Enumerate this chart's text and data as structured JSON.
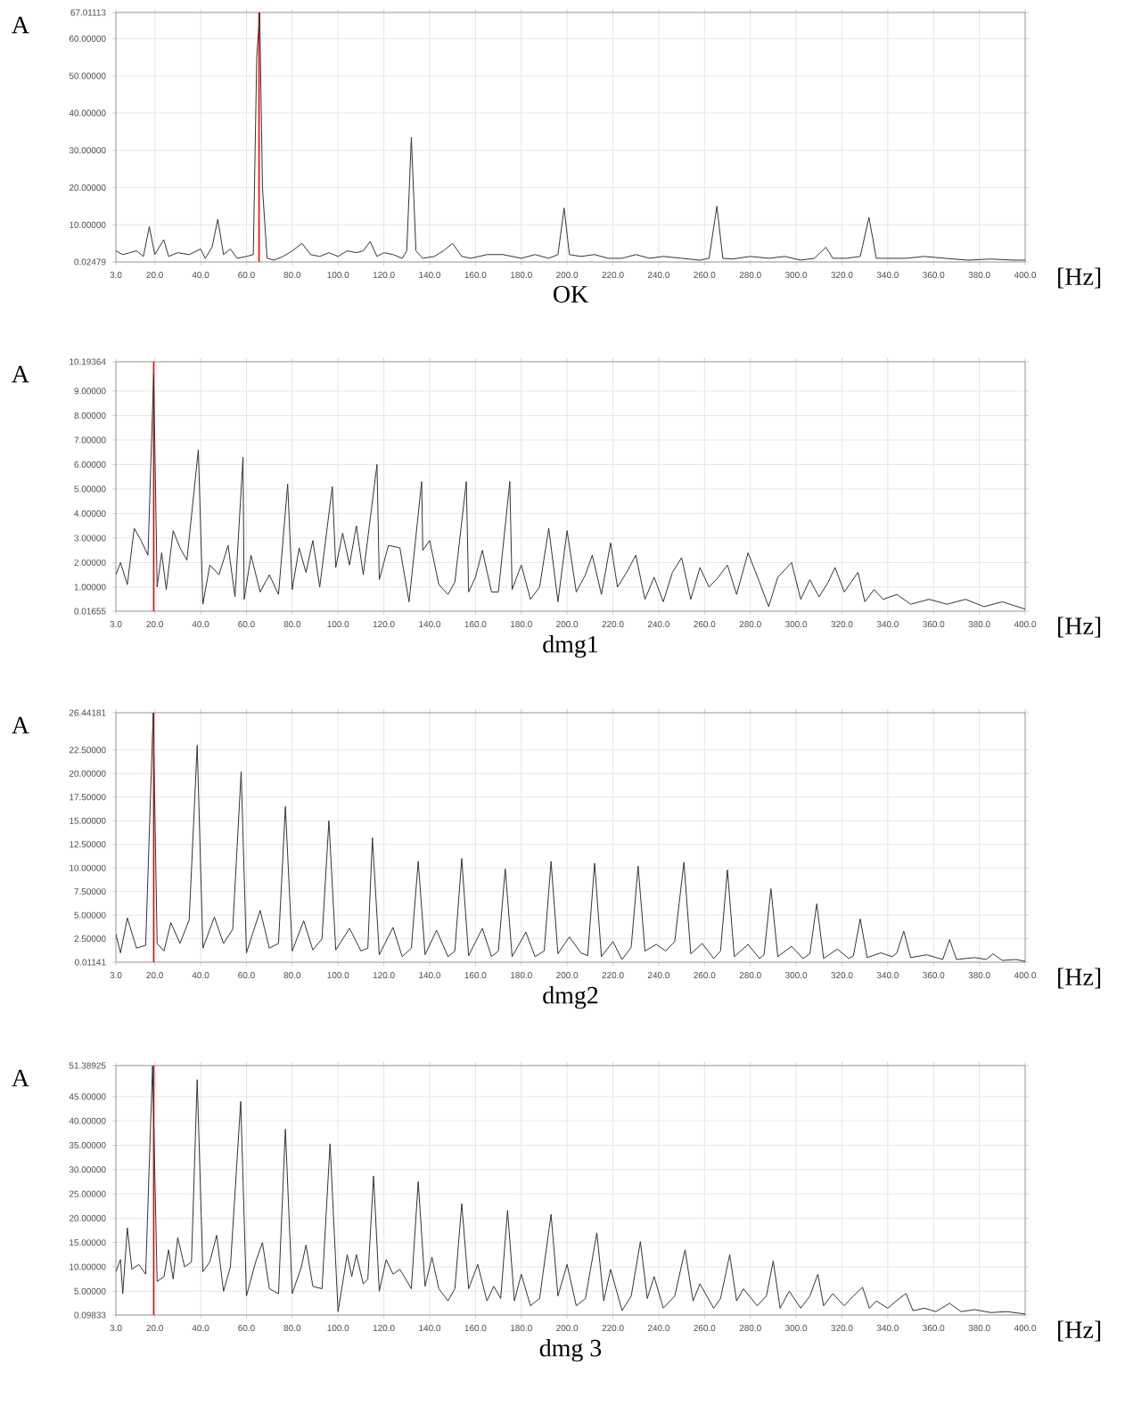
{
  "chart_data": [
    {
      "type": "line",
      "title": "OK",
      "xlabel": "[Hz]",
      "ylabel": "A",
      "color": "#333333",
      "grid": true,
      "xlim": [
        3,
        400
      ],
      "ylim": [
        0.02479,
        67.01113
      ],
      "xticks": [
        {
          "value": 3,
          "label": "3.0"
        },
        {
          "value": 20,
          "label": "20.0"
        },
        {
          "value": 40,
          "label": "40.0"
        },
        {
          "value": 60,
          "label": "60.0"
        },
        {
          "value": 80,
          "label": "80.0"
        },
        {
          "value": 100,
          "label": "100.0"
        },
        {
          "value": 120,
          "label": "120.0"
        },
        {
          "value": 140,
          "label": "140.0"
        },
        {
          "value": 160,
          "label": "160.0"
        },
        {
          "value": 180,
          "label": "180.0"
        },
        {
          "value": 200,
          "label": "200.0"
        },
        {
          "value": 220,
          "label": "220.0"
        },
        {
          "value": 240,
          "label": "240.0"
        },
        {
          "value": 260,
          "label": "260.0"
        },
        {
          "value": 280,
          "label": "280.0"
        },
        {
          "value": 300,
          "label": "300.0"
        },
        {
          "value": 320,
          "label": "320.0"
        },
        {
          "value": 340,
          "label": "340.0"
        },
        {
          "value": 360,
          "label": "360.0"
        },
        {
          "value": 380,
          "label": "380.0"
        },
        {
          "value": 400,
          "label": "400.0"
        }
      ],
      "yticks": [
        {
          "value": 0.02479,
          "label": "0.02479"
        },
        {
          "value": 10,
          "label": "10.00000"
        },
        {
          "value": 20,
          "label": "20.00000"
        },
        {
          "value": 30,
          "label": "30.00000"
        },
        {
          "value": 40,
          "label": "40.00000"
        },
        {
          "value": 50,
          "label": "50.00000"
        },
        {
          "value": 60,
          "label": "60.00000"
        },
        {
          "value": 67.01113,
          "label": "67.01113"
        }
      ],
      "ref_lines": [
        {
          "axis": "x",
          "value": 65.5,
          "color": "#ff0000"
        }
      ],
      "x": [
        3,
        6,
        9,
        12,
        15,
        17.6,
        20,
        23.9,
        26,
        30,
        35,
        40,
        42,
        45,
        47.5,
        50,
        53,
        56,
        60,
        63,
        64.5,
        65.8,
        67,
        69,
        72,
        76,
        80,
        84.3,
        88,
        92,
        96,
        100,
        104,
        108,
        111,
        114,
        117,
        120,
        124,
        128,
        130,
        132,
        134,
        137,
        142,
        146,
        150,
        154,
        158,
        165,
        172,
        180,
        186,
        192,
        196,
        198.7,
        201,
        206,
        212,
        218,
        224,
        230,
        236,
        242,
        250,
        258,
        262,
        265.4,
        268,
        272,
        280,
        288,
        295,
        302,
        308,
        313,
        316,
        322,
        328,
        331.8,
        335,
        340,
        348,
        356,
        365,
        375,
        385,
        395,
        400
      ],
      "values": [
        3,
        2,
        2.5,
        3,
        1.5,
        9.5,
        2,
        6,
        1.5,
        2.5,
        2,
        3.5,
        1,
        4,
        11.5,
        2,
        3.5,
        1,
        1.5,
        2,
        55,
        67,
        20,
        1,
        0.5,
        1.5,
        3,
        5,
        2,
        1.5,
        2.5,
        1.5,
        3,
        2.5,
        3,
        5.5,
        1.5,
        2.5,
        2,
        1,
        3,
        33.5,
        3,
        1,
        1.5,
        3,
        5,
        1.5,
        1,
        2,
        2,
        1,
        2,
        1,
        2,
        14.5,
        2,
        1.5,
        2,
        1,
        1,
        2,
        1,
        1.5,
        1,
        0.5,
        1,
        15,
        1,
        0.8,
        1.5,
        1,
        1.5,
        0.5,
        1,
        4,
        1,
        1,
        1.5,
        12,
        1,
        1,
        1,
        1.5,
        1,
        0.5,
        0.8,
        0.5,
        0.5
      ]
    },
    {
      "type": "line",
      "title": "dmg1",
      "xlabel": "[Hz]",
      "ylabel": "A",
      "color": "#333333",
      "grid": true,
      "xlim": [
        3,
        400
      ],
      "ylim": [
        0.01655,
        10.19364
      ],
      "xticks": [
        {
          "value": 3,
          "label": "3.0"
        },
        {
          "value": 20,
          "label": "20.0"
        },
        {
          "value": 40,
          "label": "40.0"
        },
        {
          "value": 60,
          "label": "60.0"
        },
        {
          "value": 80,
          "label": "80.0"
        },
        {
          "value": 100,
          "label": "100.0"
        },
        {
          "value": 120,
          "label": "120.0"
        },
        {
          "value": 140,
          "label": "140.0"
        },
        {
          "value": 160,
          "label": "160.0"
        },
        {
          "value": 180,
          "label": "180.0"
        },
        {
          "value": 200,
          "label": "200.0"
        },
        {
          "value": 220,
          "label": "220.0"
        },
        {
          "value": 240,
          "label": "240.0"
        },
        {
          "value": 260,
          "label": "260.0"
        },
        {
          "value": 280,
          "label": "280.0"
        },
        {
          "value": 300,
          "label": "300.0"
        },
        {
          "value": 320,
          "label": "320.0"
        },
        {
          "value": 340,
          "label": "340.0"
        },
        {
          "value": 360,
          "label": "360.0"
        },
        {
          "value": 380,
          "label": "380.0"
        },
        {
          "value": 400,
          "label": "400.0"
        }
      ],
      "yticks": [
        {
          "value": 0.01655,
          "label": "0.01655"
        },
        {
          "value": 1,
          "label": "1.00000"
        },
        {
          "value": 2,
          "label": "2.00000"
        },
        {
          "value": 3,
          "label": "3.00000"
        },
        {
          "value": 4,
          "label": "4.00000"
        },
        {
          "value": 5,
          "label": "5.00000"
        },
        {
          "value": 6,
          "label": "6.00000"
        },
        {
          "value": 7,
          "label": "7.00000"
        },
        {
          "value": 8,
          "label": "8.00000"
        },
        {
          "value": 9,
          "label": "9.00000"
        },
        {
          "value": 10.19364,
          "label": "10.19364"
        }
      ],
      "ref_lines": [
        {
          "axis": "x",
          "value": 19.5,
          "color": "#ff0000"
        }
      ],
      "x": [
        3,
        5,
        8,
        11,
        14,
        17,
        19.5,
        21,
        23,
        25,
        28,
        31,
        34,
        36,
        39,
        41,
        44,
        48,
        52,
        55,
        58.5,
        59,
        62,
        66,
        70,
        74,
        78,
        80,
        83,
        86,
        89,
        92,
        97.5,
        99,
        102,
        105,
        108,
        111,
        117,
        118,
        122,
        127,
        131,
        136.5,
        137,
        140,
        144,
        148,
        151,
        156,
        157,
        160,
        163,
        167,
        170,
        175,
        176,
        180,
        184,
        188,
        192,
        196,
        200,
        204,
        208,
        211,
        215,
        219,
        222,
        226,
        230,
        234,
        238,
        242,
        246,
        250,
        254,
        258,
        262,
        266,
        270,
        274,
        279,
        284,
        288,
        292,
        298,
        302,
        306,
        310,
        314,
        317,
        321,
        327,
        330,
        334,
        338,
        344,
        350,
        358,
        366,
        374,
        382,
        390,
        400
      ],
      "values": [
        1.5,
        2.0,
        1.1,
        3.4,
        2.9,
        2.3,
        9.7,
        1.0,
        2.4,
        0.9,
        3.3,
        2.6,
        2.1,
        3.9,
        6.6,
        0.3,
        1.9,
        1.5,
        2.7,
        0.6,
        6.3,
        0.5,
        2.3,
        0.8,
        1.5,
        0.7,
        5.2,
        0.9,
        2.6,
        1.6,
        2.9,
        1.0,
        5.1,
        1.8,
        3.2,
        1.9,
        3.5,
        1.5,
        6.0,
        1.3,
        2.7,
        2.6,
        0.4,
        5.3,
        2.5,
        2.9,
        1.1,
        0.7,
        1.2,
        5.3,
        0.8,
        1.4,
        2.5,
        0.8,
        0.8,
        5.3,
        0.9,
        1.9,
        0.5,
        1.0,
        3.4,
        0.4,
        3.3,
        0.8,
        1.5,
        2.3,
        0.7,
        2.8,
        1.0,
        1.6,
        2.3,
        0.5,
        1.4,
        0.4,
        1.6,
        2.2,
        0.5,
        1.8,
        1.0,
        1.4,
        1.9,
        0.7,
        2.4,
        1.2,
        0.2,
        1.4,
        2.0,
        0.5,
        1.3,
        0.6,
        1.2,
        1.8,
        0.8,
        1.6,
        0.4,
        0.9,
        0.5,
        0.7,
        0.3,
        0.5,
        0.3,
        0.5,
        0.2,
        0.4,
        0.1
      ]
    },
    {
      "type": "line",
      "title": "dmg2",
      "xlabel": "[Hz]",
      "ylabel": "A",
      "color": "#333333",
      "grid": true,
      "xlim": [
        3,
        400
      ],
      "ylim": [
        0.01141,
        26.44181
      ],
      "xticks": [
        {
          "value": 3,
          "label": "3.0"
        },
        {
          "value": 20,
          "label": "20.0"
        },
        {
          "value": 40,
          "label": "40.0"
        },
        {
          "value": 60,
          "label": "60.0"
        },
        {
          "value": 80,
          "label": "80.0"
        },
        {
          "value": 100,
          "label": "100.0"
        },
        {
          "value": 120,
          "label": "120.0"
        },
        {
          "value": 140,
          "label": "140.0"
        },
        {
          "value": 160,
          "label": "160.0"
        },
        {
          "value": 180,
          "label": "180.0"
        },
        {
          "value": 200,
          "label": "200.0"
        },
        {
          "value": 220,
          "label": "220.0"
        },
        {
          "value": 240,
          "label": "240.0"
        },
        {
          "value": 260,
          "label": "260.0"
        },
        {
          "value": 280,
          "label": "280.0"
        },
        {
          "value": 300,
          "label": "300.0"
        },
        {
          "value": 320,
          "label": "320.0"
        },
        {
          "value": 340,
          "label": "340.0"
        },
        {
          "value": 360,
          "label": "360.0"
        },
        {
          "value": 380,
          "label": "380.0"
        },
        {
          "value": 400,
          "label": "400.0"
        }
      ],
      "yticks": [
        {
          "value": 0.01141,
          "label": "0.01141"
        },
        {
          "value": 2.5,
          "label": "2.50000"
        },
        {
          "value": 5,
          "label": "5.00000"
        },
        {
          "value": 7.5,
          "label": "7.50000"
        },
        {
          "value": 10,
          "label": "10.00000"
        },
        {
          "value": 12.5,
          "label": "12.50000"
        },
        {
          "value": 15,
          "label": "15.00000"
        },
        {
          "value": 17.5,
          "label": "17.50000"
        },
        {
          "value": 20,
          "label": "20.00000"
        },
        {
          "value": 22.5,
          "label": "22.50000"
        },
        {
          "value": 26.44181,
          "label": "26.44181"
        }
      ],
      "ref_lines": [
        {
          "axis": "x",
          "value": 19.5,
          "color": "#ff0000"
        }
      ],
      "x": [
        3,
        5,
        8,
        12,
        16,
        19.3,
        21,
        24,
        27,
        31,
        35,
        38.5,
        41,
        46,
        50,
        54,
        57.7,
        60,
        66,
        70,
        74,
        77,
        80,
        85,
        89,
        93,
        96,
        99,
        105,
        110,
        113,
        115,
        118,
        124,
        128,
        132,
        135,
        138,
        143,
        148,
        151,
        154,
        157,
        163,
        167,
        170,
        173,
        176,
        182,
        186,
        190,
        193,
        196,
        201,
        206,
        209,
        212,
        215,
        220,
        224,
        228,
        231,
        234,
        239,
        243,
        247,
        251,
        254,
        259,
        264,
        267,
        270,
        273,
        279,
        284,
        286,
        289,
        292,
        298,
        303,
        306,
        309,
        312,
        318,
        323,
        325,
        328,
        331,
        337,
        342,
        344,
        347,
        350,
        357,
        364,
        367,
        370,
        378,
        383,
        386,
        390,
        396,
        400
      ],
      "values": [
        3.0,
        1.0,
        4.7,
        1.5,
        1.8,
        26.4,
        2.0,
        1.2,
        4.2,
        2.0,
        4.5,
        23.0,
        1.5,
        4.8,
        2.0,
        3.5,
        20.2,
        1.0,
        5.5,
        1.5,
        2.0,
        16.5,
        1.2,
        4.4,
        1.3,
        2.5,
        15.0,
        1.3,
        3.6,
        1.2,
        1.5,
        13.2,
        0.8,
        3.7,
        0.6,
        1.5,
        10.7,
        0.8,
        3.4,
        0.6,
        1.2,
        11.0,
        0.7,
        3.6,
        0.6,
        1.2,
        9.9,
        0.6,
        3.2,
        0.6,
        1.2,
        10.7,
        0.9,
        2.7,
        1.0,
        0.7,
        10.5,
        0.6,
        2.2,
        0.3,
        1.6,
        10.2,
        1.2,
        1.9,
        1.2,
        2.2,
        10.6,
        0.9,
        2.0,
        0.4,
        1.2,
        9.8,
        0.6,
        1.9,
        0.4,
        0.8,
        7.8,
        0.6,
        1.7,
        0.4,
        0.9,
        6.2,
        0.4,
        1.4,
        0.4,
        0.7,
        4.6,
        0.5,
        1.0,
        0.6,
        1.0,
        3.3,
        0.5,
        0.8,
        0.3,
        2.4,
        0.3,
        0.5,
        0.3,
        0.9,
        0.2,
        0.3,
        0.1
      ]
    },
    {
      "type": "line",
      "title": "dmg 3",
      "xlabel": "[Hz]",
      "ylabel": "A",
      "color": "#333333",
      "grid": true,
      "xlim": [
        3,
        400
      ],
      "ylim": [
        0.09833,
        51.38925
      ],
      "xticks": [
        {
          "value": 3,
          "label": "3.0"
        },
        {
          "value": 20,
          "label": "20.0"
        },
        {
          "value": 40,
          "label": "40.0"
        },
        {
          "value": 60,
          "label": "60.0"
        },
        {
          "value": 80,
          "label": "80.0"
        },
        {
          "value": 100,
          "label": "100.0"
        },
        {
          "value": 120,
          "label": "120.0"
        },
        {
          "value": 140,
          "label": "140.0"
        },
        {
          "value": 160,
          "label": "160.0"
        },
        {
          "value": 180,
          "label": "180.0"
        },
        {
          "value": 200,
          "label": "200.0"
        },
        {
          "value": 220,
          "label": "220.0"
        },
        {
          "value": 240,
          "label": "240.0"
        },
        {
          "value": 260,
          "label": "260.0"
        },
        {
          "value": 280,
          "label": "280.0"
        },
        {
          "value": 300,
          "label": "300.0"
        },
        {
          "value": 320,
          "label": "320.0"
        },
        {
          "value": 340,
          "label": "340.0"
        },
        {
          "value": 360,
          "label": "360.0"
        },
        {
          "value": 380,
          "label": "380.0"
        },
        {
          "value": 400,
          "label": "400.0"
        }
      ],
      "yticks": [
        {
          "value": 0.09833,
          "label": "0.09833"
        },
        {
          "value": 5,
          "label": "5.00000"
        },
        {
          "value": 10,
          "label": "10.00000"
        },
        {
          "value": 15,
          "label": "15.00000"
        },
        {
          "value": 20,
          "label": "20.00000"
        },
        {
          "value": 25,
          "label": "25.00000"
        },
        {
          "value": 30,
          "label": "30.00000"
        },
        {
          "value": 35,
          "label": "35.00000"
        },
        {
          "value": 40,
          "label": "40.00000"
        },
        {
          "value": 45,
          "label": "45.00000"
        },
        {
          "value": 51.38925,
          "label": "51.38925"
        }
      ],
      "ref_lines": [
        {
          "axis": "x",
          "value": 19.5,
          "color": "#ff0000"
        }
      ],
      "x": [
        3,
        5,
        6,
        8,
        10,
        13,
        16,
        19,
        21,
        24,
        26,
        28,
        30,
        33,
        36,
        38.5,
        41,
        44,
        47,
        50,
        53,
        57.5,
        60,
        64,
        67,
        70,
        74,
        77,
        80,
        84,
        86,
        89,
        93,
        96.5,
        100,
        104,
        106,
        108,
        111,
        113,
        115.5,
        118,
        121,
        124,
        127,
        132,
        135,
        138,
        141,
        144,
        148,
        151,
        154,
        157,
        161,
        165,
        168,
        171,
        174,
        177,
        180,
        184,
        188,
        193,
        196,
        200,
        204,
        208,
        213,
        216,
        219,
        224,
        228,
        232,
        235,
        238,
        242,
        247,
        251.5,
        255,
        258,
        264,
        267,
        271,
        274,
        277,
        283,
        287,
        290,
        293,
        297,
        302,
        306,
        309.5,
        312,
        316,
        321,
        325,
        329,
        332,
        335,
        340,
        345,
        348,
        351,
        356,
        361,
        367,
        372,
        378,
        385,
        392,
        400
      ],
      "values": [
        9.0,
        11.5,
        4.5,
        18.0,
        9.5,
        10.5,
        8.5,
        51.3,
        7.0,
        8.0,
        13.5,
        7.5,
        16.0,
        10.0,
        11.0,
        48.5,
        9.0,
        11.0,
        16.5,
        5.0,
        10.0,
        44.0,
        4.0,
        11.0,
        15.0,
        5.5,
        4.5,
        38.3,
        4.5,
        10.0,
        14.5,
        6.0,
        5.5,
        35.3,
        0.8,
        12.5,
        8.0,
        12.5,
        6.5,
        7.5,
        28.7,
        5.0,
        11.5,
        8.5,
        9.5,
        5.5,
        27.5,
        6.0,
        12.0,
        5.5,
        3.0,
        5.5,
        23.0,
        5.5,
        10.5,
        3.0,
        6.0,
        3.5,
        21.6,
        3.0,
        8.5,
        2.0,
        3.5,
        20.8,
        4.0,
        10.5,
        2.0,
        3.5,
        17.0,
        3.0,
        9.5,
        1.0,
        4.0,
        15.2,
        3.5,
        8.0,
        1.5,
        4.0,
        13.5,
        3.0,
        6.5,
        1.5,
        3.5,
        12.5,
        3.0,
        5.5,
        2.0,
        4.0,
        11.2,
        1.5,
        5.0,
        1.5,
        4.0,
        8.5,
        2.0,
        4.5,
        2.0,
        4.0,
        5.8,
        1.5,
        3.0,
        1.5,
        3.5,
        4.5,
        1.0,
        1.5,
        0.8,
        2.5,
        0.8,
        1.2,
        0.6,
        0.8,
        0.3
      ]
    }
  ]
}
